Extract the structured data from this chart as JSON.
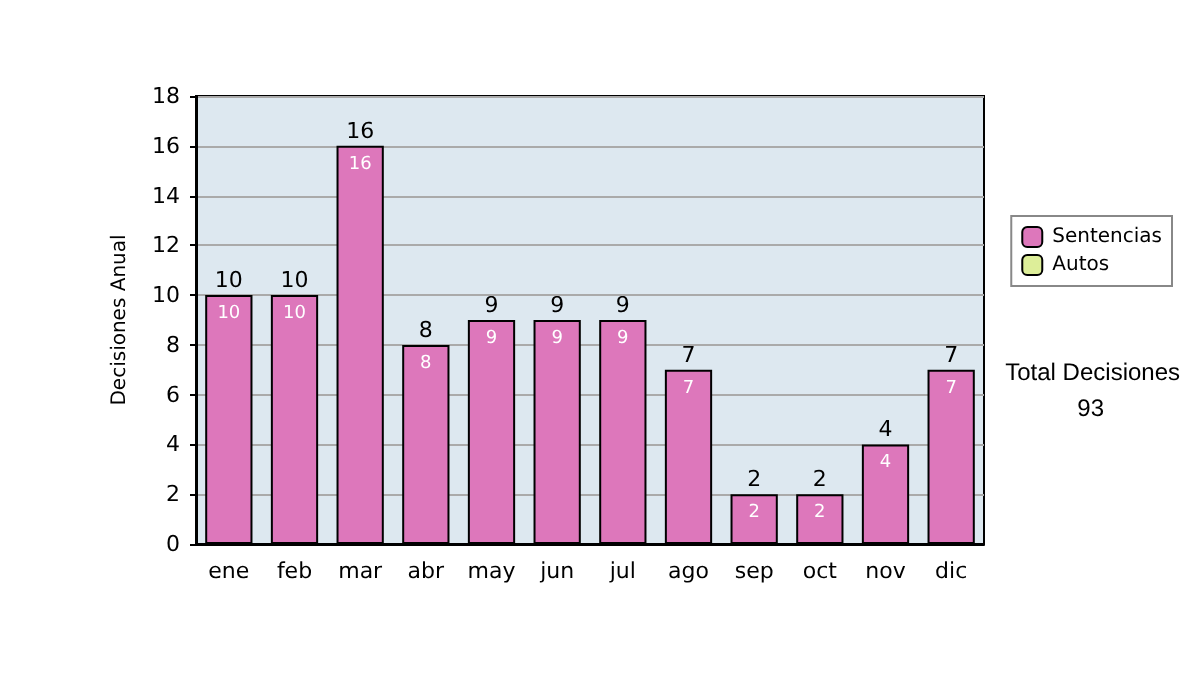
{
  "chart_data": {
    "type": "bar",
    "ylabel": "Decisiones Anual",
    "categories": [
      "ene",
      "feb",
      "mar",
      "abr",
      "may",
      "jun",
      "jul",
      "ago",
      "sep",
      "oct",
      "nov",
      "dic"
    ],
    "series": [
      {
        "name": "Sentencias",
        "color": "#dd77bb",
        "values": [
          10,
          10,
          16,
          8,
          9,
          9,
          9,
          7,
          2,
          2,
          4,
          7
        ],
        "value_labels": [
          "10",
          "10",
          "16",
          "8",
          "9",
          "9",
          "9",
          "7",
          "2",
          "2",
          "4",
          "7"
        ]
      },
      {
        "name": "Autos",
        "color": "#ddee99",
        "values": [
          null,
          null,
          null,
          null,
          null,
          null,
          null,
          null,
          null,
          null,
          null,
          null
        ]
      }
    ],
    "stacked": true,
    "totals": [
      "10",
      "10",
      "16",
      "8",
      "9",
      "9",
      "9",
      "7",
      "2",
      "2",
      "4",
      "7"
    ],
    "ylim": [
      0,
      18
    ],
    "yticks": [
      0,
      2,
      4,
      6,
      8,
      10,
      12,
      14,
      16,
      18
    ],
    "grid": "y",
    "legend": "right",
    "annotations": [
      "Total Decisiones",
      "93"
    ]
  }
}
